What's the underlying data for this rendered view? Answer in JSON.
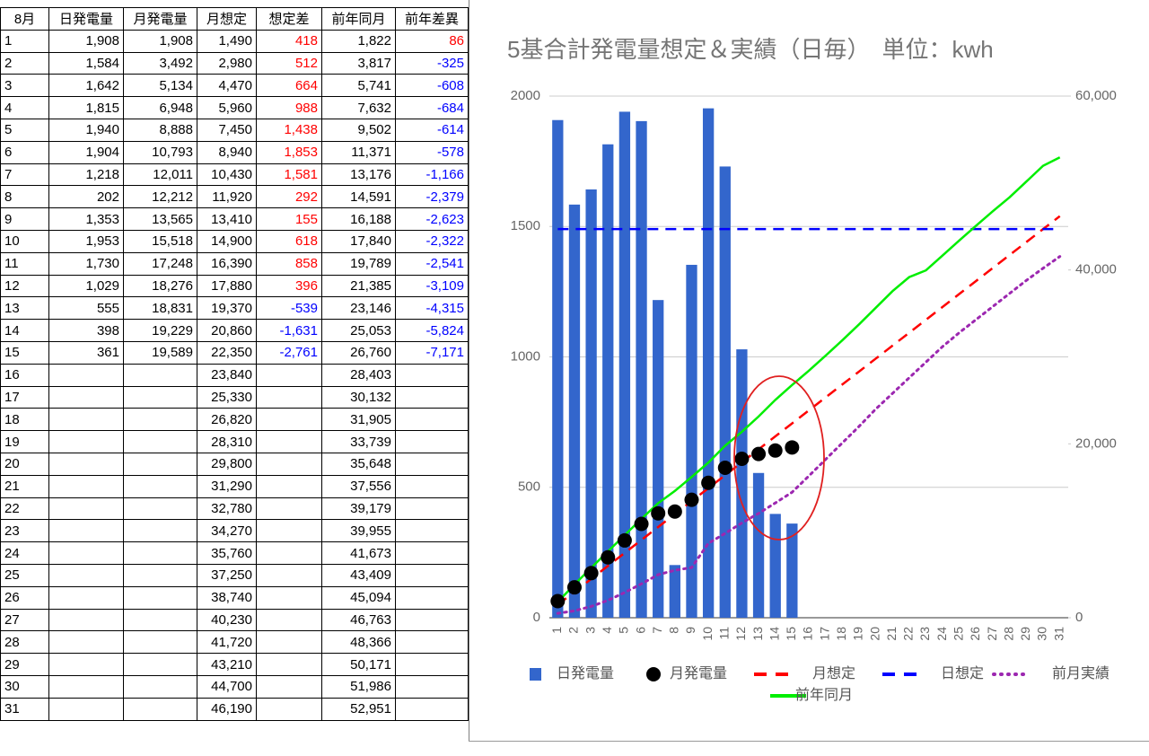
{
  "table": {
    "header": [
      "8月",
      "日発電量",
      "月発電量",
      "月想定",
      "想定差",
      "前年同月",
      "前年差異"
    ],
    "rows": [
      [
        "1",
        "1,908",
        "1,908",
        "1,490",
        "418",
        "1,822",
        "86"
      ],
      [
        "2",
        "1,584",
        "3,492",
        "2,980",
        "512",
        "3,817",
        "-325"
      ],
      [
        "3",
        "1,642",
        "5,134",
        "4,470",
        "664",
        "5,741",
        "-608"
      ],
      [
        "4",
        "1,815",
        "6,948",
        "5,960",
        "988",
        "7,632",
        "-684"
      ],
      [
        "5",
        "1,940",
        "8,888",
        "7,450",
        "1,438",
        "9,502",
        "-614"
      ],
      [
        "6",
        "1,904",
        "10,793",
        "8,940",
        "1,853",
        "11,371",
        "-578"
      ],
      [
        "7",
        "1,218",
        "12,011",
        "10,430",
        "1,581",
        "13,176",
        "-1,166"
      ],
      [
        "8",
        "202",
        "12,212",
        "11,920",
        "292",
        "14,591",
        "-2,379"
      ],
      [
        "9",
        "1,353",
        "13,565",
        "13,410",
        "155",
        "16,188",
        "-2,623"
      ],
      [
        "10",
        "1,953",
        "15,518",
        "14,900",
        "618",
        "17,840",
        "-2,322"
      ],
      [
        "11",
        "1,730",
        "17,248",
        "16,390",
        "858",
        "19,789",
        "-2,541"
      ],
      [
        "12",
        "1,029",
        "18,276",
        "17,880",
        "396",
        "21,385",
        "-3,109"
      ],
      [
        "13",
        "555",
        "18,831",
        "19,370",
        "-539",
        "23,146",
        "-4,315"
      ],
      [
        "14",
        "398",
        "19,229",
        "20,860",
        "-1,631",
        "25,053",
        "-5,824"
      ],
      [
        "15",
        "361",
        "19,589",
        "22,350",
        "-2,761",
        "26,760",
        "-7,171"
      ],
      [
        "16",
        null,
        null,
        "23,840",
        null,
        "28,403",
        null
      ],
      [
        "17",
        null,
        null,
        "25,330",
        null,
        "30,132",
        null
      ],
      [
        "18",
        null,
        null,
        "26,820",
        null,
        "31,905",
        null
      ],
      [
        "19",
        null,
        null,
        "28,310",
        null,
        "33,739",
        null
      ],
      [
        "20",
        null,
        null,
        "29,800",
        null,
        "35,648",
        null
      ],
      [
        "21",
        null,
        null,
        "31,290",
        null,
        "37,556",
        null
      ],
      [
        "22",
        null,
        null,
        "32,780",
        null,
        "39,179",
        null
      ],
      [
        "23",
        null,
        null,
        "34,270",
        null,
        "39,955",
        null
      ],
      [
        "24",
        null,
        null,
        "35,760",
        null,
        "41,673",
        null
      ],
      [
        "25",
        null,
        null,
        "37,250",
        null,
        "43,409",
        null
      ],
      [
        "26",
        null,
        null,
        "38,740",
        null,
        "45,094",
        null
      ],
      [
        "27",
        null,
        null,
        "40,230",
        null,
        "46,763",
        null
      ],
      [
        "28",
        null,
        null,
        "41,720",
        null,
        "48,366",
        null
      ],
      [
        "29",
        null,
        null,
        "43,210",
        null,
        "50,171",
        null
      ],
      [
        "30",
        null,
        null,
        "44,700",
        null,
        "51,986",
        null
      ],
      [
        "31",
        null,
        null,
        "46,190",
        null,
        "52,951",
        null
      ]
    ]
  },
  "chart_data": {
    "type": "combo",
    "title": "5基合計発電量想定＆実績（日毎）　単位：kwh",
    "categories": [
      "1",
      "2",
      "3",
      "4",
      "5",
      "6",
      "7",
      "8",
      "9",
      "10",
      "11",
      "12",
      "13",
      "14",
      "15",
      "16",
      "17",
      "18",
      "19",
      "20",
      "21",
      "22",
      "23",
      "24",
      "25",
      "26",
      "27",
      "28",
      "29",
      "30",
      "31"
    ],
    "ylim": [
      0,
      2000
    ],
    "yticks": [
      0,
      500,
      1000,
      1500,
      2000
    ],
    "y2lim": [
      0,
      60000
    ],
    "y2ticks": [
      0,
      {
        "value": 20000,
        "label": "20,000"
      },
      {
        "value": 40000,
        "label": "40,000"
      },
      {
        "value": 60000,
        "label": "60,000"
      }
    ],
    "grid": true,
    "legend": "bottom",
    "series": [
      {
        "name": "日発電量",
        "kind": "bar",
        "color": "#3366cc",
        "axis": "y",
        "values": [
          1908,
          1584,
          1642,
          1815,
          1940,
          1904,
          1218,
          202,
          1353,
          1953,
          1730,
          1029,
          555,
          398,
          361,
          null,
          null,
          null,
          null,
          null,
          null,
          null,
          null,
          null,
          null,
          null,
          null,
          null,
          null,
          null,
          null
        ]
      },
      {
        "name": "月発電量",
        "kind": "scatter",
        "color": "#000000",
        "axis": "y2",
        "values": [
          1908,
          3492,
          5134,
          6948,
          8888,
          10793,
          12011,
          12212,
          13565,
          15518,
          17248,
          18276,
          18831,
          19229,
          19589,
          null,
          null,
          null,
          null,
          null,
          null,
          null,
          null,
          null,
          null,
          null,
          null,
          null,
          null,
          null,
          null
        ]
      },
      {
        "name": "月想定",
        "kind": "line",
        "dash": "dashed",
        "color": "#ff0000",
        "axis": "y2",
        "values": [
          1490,
          2980,
          4470,
          5960,
          7450,
          8940,
          10430,
          11920,
          13410,
          14900,
          16390,
          17880,
          19370,
          20860,
          22350,
          23840,
          25330,
          26820,
          28310,
          29800,
          31290,
          32780,
          34270,
          35760,
          37250,
          38740,
          40230,
          41720,
          43210,
          44700,
          46190
        ]
      },
      {
        "name": "日想定",
        "kind": "line",
        "dash": "dashed",
        "color": "#0000ff",
        "axis": "y",
        "values": [
          1490,
          1490,
          1490,
          1490,
          1490,
          1490,
          1490,
          1490,
          1490,
          1490,
          1490,
          1490,
          1490,
          1490,
          1490,
          1490,
          1490,
          1490,
          1490,
          1490,
          1490,
          1490,
          1490,
          1490,
          1490,
          1490,
          1490,
          1490,
          1490,
          1490,
          1490
        ]
      },
      {
        "name": "前月実績",
        "kind": "line",
        "dash": "dotted",
        "color": "#9c27b0",
        "axis": "y2",
        "values": [
          500,
          800,
          1300,
          2000,
          2900,
          3900,
          4950,
          5460,
          5770,
          8560,
          9700,
          10900,
          12000,
          13200,
          14430,
          16300,
          18200,
          20100,
          22000,
          24000,
          25800,
          27600,
          29400,
          31200,
          32800,
          34300,
          35800,
          37300,
          38800,
          40200,
          41550
        ]
      },
      {
        "name": "前年同月",
        "kind": "line",
        "dash": "solid",
        "color": "#00ee00",
        "axis": "y2",
        "values": [
          1822,
          3817,
          5741,
          7632,
          9502,
          11371,
          13176,
          14591,
          16188,
          17840,
          19789,
          21385,
          23146,
          25053,
          26760,
          28403,
          30132,
          31905,
          33739,
          35648,
          37556,
          39179,
          39955,
          41673,
          43409,
          45094,
          46763,
          48366,
          50171,
          51986,
          52951
        ]
      }
    ]
  }
}
